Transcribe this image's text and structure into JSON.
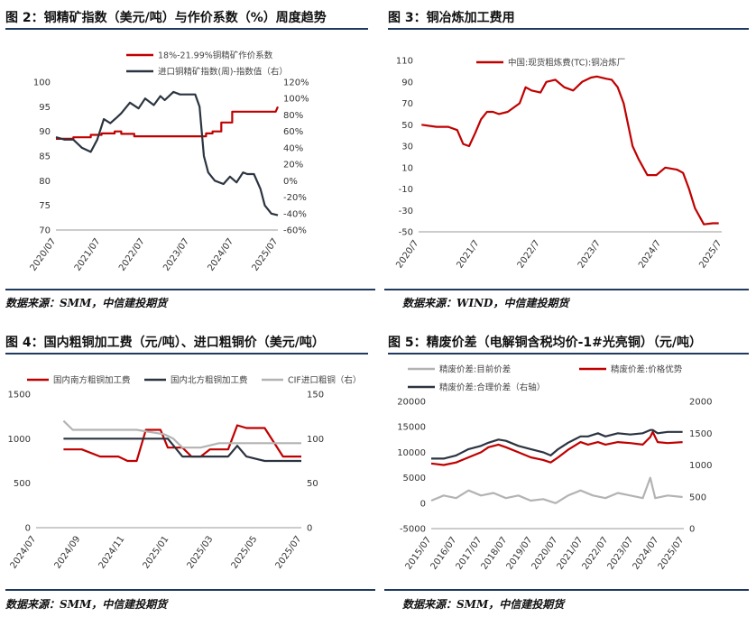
{
  "panels": {
    "p1": {
      "title": "图 2：铜精矿指数（美元/吨）与作价系数（%）周度趋势",
      "source": "数据来源：SMM，中信建投期货"
    },
    "p2": {
      "title": "图 3：铜冶炼加工费用",
      "source": "数据来源：WIND，中信建投期货"
    },
    "p3": {
      "title": "图 4：国内粗铜加工费（元/吨）、进口粗铜价（美元/吨）",
      "source": "数据来源：SMM，中信建投期货"
    },
    "p4": {
      "title": "图 5：精废价差（电解铜含税均价-1#光亮铜）（元/吨）",
      "source": "数据来源：SMM，中信建投期货"
    }
  },
  "colors": {
    "red": "#c00000",
    "navy": "#2b3440",
    "gray": "#b3b3b3",
    "rule": "#1f3a5f"
  },
  "chart_data": [
    {
      "type": "line",
      "id": "c1",
      "x_ticks": [
        "2020/07",
        "2021/07",
        "2022/07",
        "2023/07",
        "2024/07",
        "2025/07"
      ],
      "y_ticks": [
        "70",
        "75",
        "80",
        "85",
        "90",
        "95",
        "100"
      ],
      "y2_ticks": [
        "-60%",
        "-40%",
        "-20%",
        "0%",
        "20%",
        "40%",
        "60%",
        "80%",
        "100%",
        "120%"
      ],
      "ylim": [
        70,
        100
      ],
      "y2lim": [
        -60,
        120
      ],
      "series": [
        {
          "name": "18%-21.99%铜精矿作价系数",
          "color": "#c00000",
          "axis": "left",
          "x": [
            2020.5,
            2020.9,
            2020.9,
            2021.3,
            2021.3,
            2021.55,
            2021.55,
            2021.85,
            2021.85,
            2022.0,
            2022.0,
            2022.3,
            2022.3,
            2023.0,
            2023.2,
            2023.5,
            2023.75,
            2023.95,
            2023.95,
            2024.1,
            2024.1,
            2024.3,
            2024.3,
            2024.55,
            2024.55,
            2025.55,
            2025.6
          ],
          "y": [
            88.5,
            88.5,
            88.8,
            88.8,
            89.3,
            89.3,
            89.6,
            89.6,
            90.0,
            90.0,
            89.5,
            89.5,
            89.0,
            89.0,
            89.0,
            89.0,
            89.0,
            89.0,
            89.6,
            89.6,
            90.0,
            90.0,
            91.8,
            91.8,
            94.0,
            94.0,
            95.0
          ]
        },
        {
          "name": "进口铜精矿指数(周)-指数值（右）",
          "color": "#2b3440",
          "axis": "right",
          "x": [
            2020.5,
            2020.7,
            2020.9,
            2021.1,
            2021.3,
            2021.45,
            2021.6,
            2021.75,
            2021.9,
            2022.0,
            2022.2,
            2022.4,
            2022.55,
            2022.75,
            2022.9,
            2023.0,
            2023.2,
            2023.35,
            2023.5,
            2023.7,
            2023.8,
            2023.85,
            2023.9,
            2024.0,
            2024.15,
            2024.35,
            2024.5,
            2024.65,
            2024.8,
            2024.9,
            2025.05,
            2025.2,
            2025.3,
            2025.45,
            2025.6
          ],
          "y": [
            53,
            50,
            50,
            40,
            35,
            50,
            75,
            70,
            77,
            82,
            95,
            88,
            100,
            92,
            103,
            98,
            108,
            105,
            105,
            105,
            90,
            60,
            30,
            10,
            0,
            -4,
            5,
            -2,
            10,
            8,
            8,
            -10,
            -30,
            -40,
            -42
          ]
        }
      ]
    },
    {
      "type": "line",
      "id": "c2",
      "x_ticks": [
        "2020/7",
        "2021/7",
        "2022/7",
        "2023/7",
        "2024/7",
        "2025/7"
      ],
      "y_ticks": [
        "-50",
        "-30",
        "-10",
        "10",
        "30",
        "50",
        "70",
        "90",
        "110"
      ],
      "ylim": [
        -50,
        110
      ],
      "series": [
        {
          "name": "中国:现货粗炼费(TC):铜冶炼厂",
          "color": "#c00000",
          "x": [
            2020.55,
            2020.8,
            2021.0,
            2021.15,
            2021.25,
            2021.35,
            2021.45,
            2021.55,
            2021.65,
            2021.75,
            2021.85,
            2022.0,
            2022.2,
            2022.3,
            2022.4,
            2022.55,
            2022.65,
            2022.8,
            2022.95,
            2023.1,
            2023.25,
            2023.4,
            2023.5,
            2023.65,
            2023.75,
            2023.85,
            2023.95,
            2024.1,
            2024.2,
            2024.35,
            2024.5,
            2024.65,
            2024.85,
            2024.95,
            2025.05,
            2025.15,
            2025.3,
            2025.45,
            2025.55
          ],
          "y": [
            50,
            48,
            48,
            45,
            32,
            30,
            42,
            55,
            62,
            62,
            60,
            62,
            70,
            85,
            82,
            80,
            90,
            92,
            85,
            82,
            90,
            94,
            95,
            93,
            92,
            85,
            70,
            30,
            18,
            3,
            3,
            10,
            8,
            5,
            -10,
            -28,
            -43,
            -42,
            -42
          ]
        }
      ]
    },
    {
      "type": "line",
      "id": "c3",
      "x_ticks": [
        "2024/07",
        "2024/09",
        "2024/11",
        "2025/01",
        "2025/03",
        "2025/05",
        "2025/07"
      ],
      "y_ticks": [
        "0",
        "500",
        "1000",
        "1500"
      ],
      "y2_ticks": [
        "0",
        "50",
        "100",
        "150"
      ],
      "ylim": [
        0,
        1500
      ],
      "y2lim": [
        0,
        150
      ],
      "series": [
        {
          "name": "国内南方粗铜加工费",
          "color": "#c00000",
          "axis": "left",
          "x": [
            2024.65,
            2024.75,
            2024.85,
            2024.95,
            2025.0,
            2025.05,
            2025.1,
            2025.18,
            2025.22,
            2025.3,
            2025.35,
            2025.4,
            2025.45,
            2025.5,
            2025.55,
            2025.6,
            2025.65,
            2025.75,
            2025.85,
            2025.95
          ],
          "y": [
            880,
            880,
            800,
            800,
            750,
            750,
            1100,
            1100,
            900,
            900,
            800,
            800,
            880,
            880,
            880,
            1150,
            1120,
            1120,
            800,
            800
          ]
        },
        {
          "name": "国内北方粗铜加工费",
          "color": "#2b3440",
          "axis": "left",
          "x": [
            2024.65,
            2024.85,
            2025.05,
            2025.15,
            2025.22,
            2025.3,
            2025.45,
            2025.55,
            2025.6,
            2025.65,
            2025.75,
            2025.85,
            2025.95
          ],
          "y": [
            1000,
            1000,
            1000,
            1000,
            1000,
            800,
            800,
            800,
            920,
            800,
            750,
            750,
            750
          ]
        },
        {
          "name": "CIF进口粗铜（右）",
          "color": "#b3b3b3",
          "axis": "right",
          "x": [
            2024.65,
            2024.7,
            2024.85,
            2025.05,
            2025.2,
            2025.25,
            2025.3,
            2025.4,
            2025.5,
            2025.6,
            2025.7,
            2025.95
          ],
          "y": [
            120,
            110,
            110,
            110,
            105,
            100,
            90,
            90,
            95,
            95,
            95,
            95
          ]
        }
      ]
    },
    {
      "type": "line",
      "id": "c4",
      "x_ticks": [
        "2015/07",
        "2016/07",
        "2017/07",
        "2018/07",
        "2019/07",
        "2020/07",
        "2021/07",
        "2022/07",
        "2023/07",
        "2024/07",
        "2025/07"
      ],
      "y_ticks": [
        "-5000",
        "0",
        "5000",
        "10000",
        "15000",
        "20000"
      ],
      "y2_ticks": [
        "0",
        "500",
        "1000",
        "1500",
        "2000"
      ],
      "ylim": [
        -5000,
        20000
      ],
      "y2lim": [
        0,
        2000
      ],
      "series": [
        {
          "name": "精废价差:目前价差",
          "color": "#b3b3b3",
          "axis": "left",
          "x": [
            2015.5,
            2016.0,
            2016.5,
            2017.0,
            2017.5,
            2018.0,
            2018.5,
            2019.0,
            2019.5,
            2020.0,
            2020.5,
            2021.0,
            2021.5,
            2022.0,
            2022.5,
            2023.0,
            2023.5,
            2024.0,
            2024.3,
            2024.5,
            2025.0,
            2025.6
          ],
          "y": [
            500,
            1500,
            1000,
            2500,
            1500,
            2000,
            1000,
            1500,
            500,
            800,
            0,
            1500,
            2500,
            1500,
            1000,
            2000,
            1500,
            1000,
            5000,
            1000,
            1500,
            1200
          ]
        },
        {
          "name": "精废价差:价格优势",
          "color": "#c00000",
          "axis": "left",
          "x": [
            2015.5,
            2016.0,
            2016.5,
            2017.0,
            2017.5,
            2017.8,
            2018.2,
            2018.5,
            2019.0,
            2019.5,
            2020.0,
            2020.3,
            2020.6,
            2021.0,
            2021.5,
            2021.8,
            2022.2,
            2022.5,
            2023.0,
            2023.5,
            2024.0,
            2024.3,
            2024.4,
            2024.6,
            2025.0,
            2025.6
          ],
          "y": [
            7800,
            7500,
            8000,
            9000,
            10000,
            11000,
            11500,
            11000,
            10000,
            9000,
            8500,
            8000,
            9000,
            10500,
            12000,
            11500,
            12000,
            11500,
            12000,
            11800,
            11500,
            13000,
            14000,
            12000,
            11800,
            12000
          ]
        },
        {
          "name": "精废价差:合理价差（右轴）",
          "color": "#2b3440",
          "axis": "right",
          "x": [
            2015.5,
            2016.0,
            2016.5,
            2017.0,
            2017.5,
            2017.8,
            2018.2,
            2018.5,
            2019.0,
            2019.5,
            2020.0,
            2020.3,
            2020.6,
            2021.0,
            2021.5,
            2021.8,
            2022.2,
            2022.5,
            2023.0,
            2023.5,
            2024.0,
            2024.3,
            2024.4,
            2024.6,
            2025.0,
            2025.6
          ],
          "y": [
            1100,
            1100,
            1150,
            1250,
            1300,
            1350,
            1400,
            1380,
            1300,
            1250,
            1200,
            1150,
            1250,
            1350,
            1450,
            1450,
            1500,
            1450,
            1500,
            1480,
            1500,
            1550,
            1550,
            1500,
            1520,
            1520
          ]
        }
      ]
    }
  ]
}
